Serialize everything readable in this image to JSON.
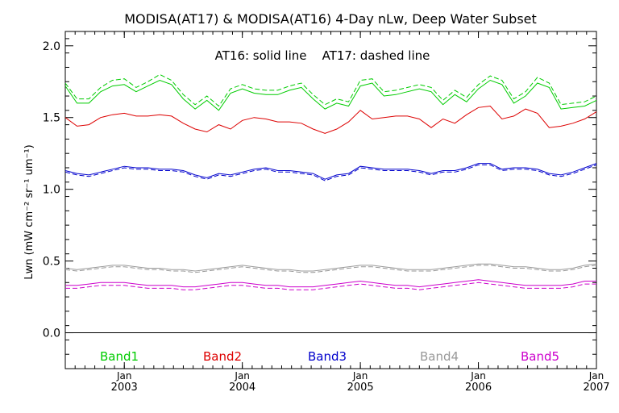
{
  "chart_data": {
    "type": "line",
    "title": "MODISA(AT17) & MODISA(AT16) 4-Day nLw, Deep Water Subset",
    "annotation": "AT16: solid line    AT17: dashed line",
    "ylabel": "Lwn (mW cm⁻² sr⁻¹ um⁻¹)",
    "ylim": [
      -0.25,
      2.1
    ],
    "xlim": [
      2002.5,
      2007.0
    ],
    "y_ticks": [
      "0.0",
      "0.5",
      "1.0",
      "1.5",
      "2.0"
    ],
    "x_ticks": [
      {
        "top": "Jan",
        "bottom": "2003"
      },
      {
        "top": "Jan",
        "bottom": "2004"
      },
      {
        "top": "Jan",
        "bottom": "2005"
      },
      {
        "top": "Jan",
        "bottom": "2006"
      },
      {
        "top": "Jan",
        "bottom": "2007"
      }
    ],
    "zero_line": true,
    "grid": false,
    "legend_position": "bottom",
    "x": [
      2002.5,
      2002.6,
      2002.7,
      2002.8,
      2002.9,
      2003.0,
      2003.1,
      2003.2,
      2003.3,
      2003.4,
      2003.5,
      2003.6,
      2003.7,
      2003.8,
      2003.9,
      2004.0,
      2004.1,
      2004.2,
      2004.3,
      2004.4,
      2004.5,
      2004.6,
      2004.7,
      2004.8,
      2004.9,
      2005.0,
      2005.1,
      2005.2,
      2005.3,
      2005.4,
      2005.5,
      2005.6,
      2005.7,
      2005.8,
      2005.9,
      2006.0,
      2006.1,
      2006.2,
      2006.3,
      2006.4,
      2006.5,
      2006.6,
      2006.7,
      2006.8,
      2006.9,
      2007.0
    ],
    "series": [
      {
        "name": "Band1",
        "line": "solid",
        "color": "#00cc00",
        "values": [
          1.72,
          1.6,
          1.6,
          1.68,
          1.72,
          1.73,
          1.68,
          1.72,
          1.76,
          1.73,
          1.63,
          1.56,
          1.62,
          1.55,
          1.67,
          1.7,
          1.67,
          1.66,
          1.66,
          1.69,
          1.71,
          1.63,
          1.56,
          1.6,
          1.58,
          1.72,
          1.74,
          1.65,
          1.66,
          1.68,
          1.7,
          1.68,
          1.59,
          1.66,
          1.61,
          1.7,
          1.76,
          1.73,
          1.6,
          1.65,
          1.74,
          1.71,
          1.56,
          1.57,
          1.58,
          1.62
        ]
      },
      {
        "name": "Band1 AT17",
        "line": "dashed",
        "color": "#00cc00",
        "values": [
          1.74,
          1.63,
          1.63,
          1.71,
          1.76,
          1.77,
          1.71,
          1.75,
          1.8,
          1.76,
          1.66,
          1.59,
          1.65,
          1.58,
          1.7,
          1.73,
          1.7,
          1.69,
          1.69,
          1.72,
          1.74,
          1.66,
          1.59,
          1.63,
          1.61,
          1.76,
          1.77,
          1.68,
          1.69,
          1.71,
          1.73,
          1.71,
          1.62,
          1.69,
          1.64,
          1.73,
          1.79,
          1.76,
          1.63,
          1.68,
          1.78,
          1.74,
          1.59,
          1.6,
          1.61,
          1.65
        ]
      },
      {
        "name": "Band2",
        "line": "solid",
        "color": "#dd0000",
        "values": [
          1.5,
          1.44,
          1.45,
          1.5,
          1.52,
          1.53,
          1.51,
          1.51,
          1.52,
          1.51,
          1.46,
          1.42,
          1.4,
          1.45,
          1.42,
          1.48,
          1.5,
          1.49,
          1.47,
          1.47,
          1.46,
          1.42,
          1.39,
          1.42,
          1.47,
          1.55,
          1.49,
          1.5,
          1.51,
          1.51,
          1.49,
          1.43,
          1.49,
          1.46,
          1.52,
          1.57,
          1.58,
          1.49,
          1.51,
          1.56,
          1.53,
          1.43,
          1.44,
          1.46,
          1.49,
          1.54
        ]
      },
      {
        "name": "Band3",
        "line": "solid",
        "color": "#0000cc",
        "values": [
          1.13,
          1.11,
          1.1,
          1.12,
          1.14,
          1.16,
          1.15,
          1.15,
          1.14,
          1.14,
          1.13,
          1.1,
          1.08,
          1.11,
          1.1,
          1.12,
          1.14,
          1.15,
          1.13,
          1.13,
          1.12,
          1.11,
          1.07,
          1.1,
          1.11,
          1.16,
          1.15,
          1.14,
          1.14,
          1.14,
          1.13,
          1.11,
          1.13,
          1.13,
          1.15,
          1.18,
          1.18,
          1.14,
          1.15,
          1.15,
          1.14,
          1.11,
          1.1,
          1.12,
          1.15,
          1.18
        ]
      },
      {
        "name": "Band3 AT17",
        "line": "dashed",
        "color": "#0000cc",
        "values": [
          1.12,
          1.1,
          1.09,
          1.11,
          1.13,
          1.15,
          1.14,
          1.14,
          1.13,
          1.13,
          1.12,
          1.09,
          1.07,
          1.1,
          1.09,
          1.11,
          1.13,
          1.14,
          1.12,
          1.12,
          1.11,
          1.1,
          1.06,
          1.09,
          1.1,
          1.15,
          1.14,
          1.13,
          1.13,
          1.13,
          1.12,
          1.1,
          1.12,
          1.12,
          1.14,
          1.17,
          1.17,
          1.13,
          1.14,
          1.14,
          1.13,
          1.1,
          1.09,
          1.11,
          1.14,
          1.17
        ]
      },
      {
        "name": "Band4",
        "line": "solid",
        "color": "#999999",
        "values": [
          0.45,
          0.44,
          0.45,
          0.46,
          0.47,
          0.47,
          0.46,
          0.45,
          0.45,
          0.44,
          0.44,
          0.43,
          0.44,
          0.45,
          0.46,
          0.47,
          0.46,
          0.45,
          0.44,
          0.44,
          0.43,
          0.43,
          0.44,
          0.45,
          0.46,
          0.47,
          0.47,
          0.46,
          0.45,
          0.44,
          0.44,
          0.44,
          0.45,
          0.46,
          0.47,
          0.48,
          0.48,
          0.47,
          0.46,
          0.46,
          0.45,
          0.44,
          0.44,
          0.45,
          0.47,
          0.48
        ]
      },
      {
        "name": "Band4 AT17",
        "line": "dashed",
        "color": "#999999",
        "values": [
          0.44,
          0.43,
          0.44,
          0.45,
          0.46,
          0.46,
          0.45,
          0.44,
          0.44,
          0.43,
          0.43,
          0.42,
          0.43,
          0.44,
          0.45,
          0.46,
          0.45,
          0.44,
          0.43,
          0.43,
          0.42,
          0.42,
          0.43,
          0.44,
          0.45,
          0.46,
          0.46,
          0.45,
          0.44,
          0.43,
          0.43,
          0.43,
          0.44,
          0.45,
          0.46,
          0.47,
          0.47,
          0.46,
          0.45,
          0.45,
          0.44,
          0.43,
          0.43,
          0.44,
          0.46,
          0.47
        ]
      },
      {
        "name": "Band5",
        "line": "solid",
        "color": "#cc00cc",
        "values": [
          0.33,
          0.33,
          0.34,
          0.35,
          0.35,
          0.35,
          0.34,
          0.33,
          0.33,
          0.33,
          0.32,
          0.32,
          0.33,
          0.34,
          0.35,
          0.35,
          0.34,
          0.33,
          0.33,
          0.32,
          0.32,
          0.32,
          0.33,
          0.34,
          0.35,
          0.36,
          0.35,
          0.34,
          0.33,
          0.33,
          0.32,
          0.33,
          0.34,
          0.35,
          0.36,
          0.37,
          0.36,
          0.35,
          0.34,
          0.33,
          0.33,
          0.33,
          0.33,
          0.34,
          0.36,
          0.36
        ]
      },
      {
        "name": "Band5 AT17",
        "line": "dashed",
        "color": "#cc00cc",
        "values": [
          0.31,
          0.31,
          0.32,
          0.33,
          0.33,
          0.33,
          0.32,
          0.31,
          0.31,
          0.31,
          0.3,
          0.3,
          0.31,
          0.32,
          0.33,
          0.33,
          0.32,
          0.31,
          0.31,
          0.3,
          0.3,
          0.3,
          0.31,
          0.32,
          0.33,
          0.34,
          0.33,
          0.32,
          0.31,
          0.31,
          0.3,
          0.31,
          0.32,
          0.33,
          0.34,
          0.35,
          0.34,
          0.33,
          0.32,
          0.31,
          0.31,
          0.31,
          0.31,
          0.32,
          0.34,
          0.34
        ]
      }
    ],
    "legend": [
      {
        "label": "Band1",
        "color": "#00cc00"
      },
      {
        "label": "Band2",
        "color": "#dd0000"
      },
      {
        "label": "Band3",
        "color": "#0000cc"
      },
      {
        "label": "Band4",
        "color": "#999999"
      },
      {
        "label": "Band5",
        "color": "#cc00cc"
      }
    ]
  }
}
